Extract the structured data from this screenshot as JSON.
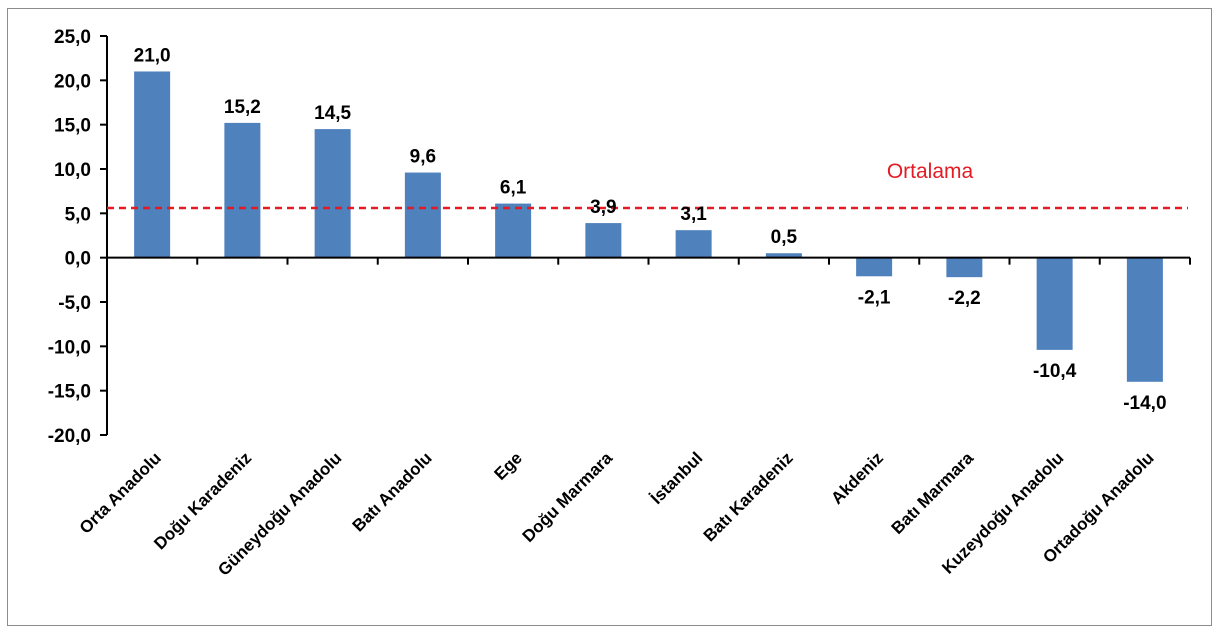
{
  "chart_data": {
    "type": "bar",
    "categories": [
      "Orta Anadolu",
      "Doğu Karadeniz",
      "Güneydoğu Anadolu",
      "Batı Anadolu",
      "Ege",
      "Doğu Marmara",
      "İstanbul",
      "Batı Karadeniz",
      "Akdeniz",
      "Batı Marmara",
      "Kuzeydoğu Anadolu",
      "Ortadoğu Anadolu"
    ],
    "values": [
      21.0,
      15.2,
      14.5,
      9.6,
      6.1,
      3.9,
      3.1,
      0.5,
      -2.1,
      -2.2,
      -10.4,
      -14.0
    ],
    "value_labels": [
      "21,0",
      "15,2",
      "14,5",
      "9,6",
      "6,1",
      "3,9",
      "3,1",
      "0,5",
      "-2,1",
      "-2,2",
      "-10,4",
      "-14,0"
    ],
    "yticks": [
      25,
      20,
      15,
      10,
      5,
      0,
      -5,
      -10,
      -15,
      -20
    ],
    "ytick_labels": [
      "25,0",
      "20,0",
      "15,0",
      "10,0",
      "5,0",
      "0,0",
      "-5,0",
      "-10,0",
      "-15,0",
      "-20,0"
    ],
    "ylim": [
      -20,
      25
    ],
    "average": {
      "label": "Ortalama",
      "value": 5.6
    },
    "colors": {
      "bar": "#4f81bd",
      "average": "#e31b23"
    },
    "grid": false,
    "legend": "none"
  }
}
